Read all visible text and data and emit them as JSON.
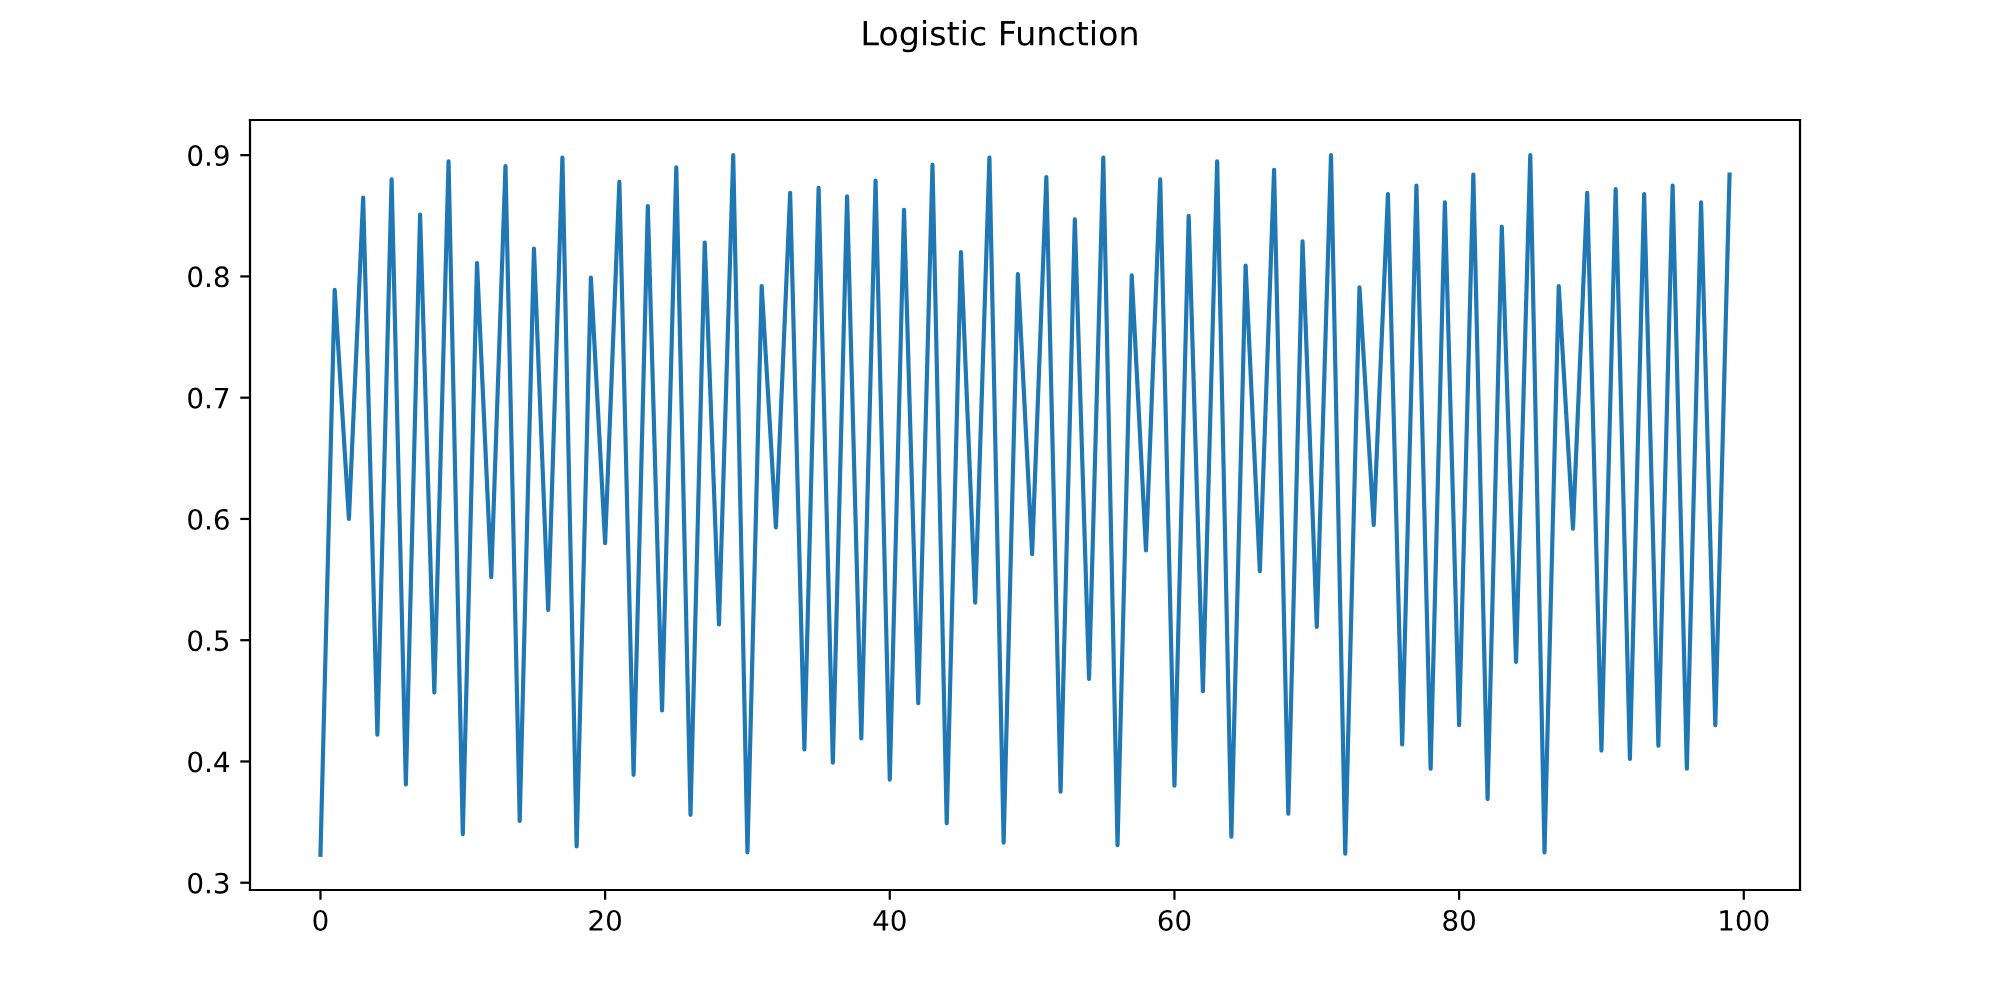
{
  "chart_data": {
    "type": "line",
    "title": "Logistic Function",
    "x": [
      0,
      1,
      2,
      3,
      4,
      5,
      6,
      7,
      8,
      9,
      10,
      11,
      12,
      13,
      14,
      15,
      16,
      17,
      18,
      19,
      20,
      21,
      22,
      23,
      24,
      25,
      26,
      27,
      28,
      29,
      30,
      31,
      32,
      33,
      34,
      35,
      36,
      37,
      38,
      39,
      40,
      41,
      42,
      43,
      44,
      45,
      46,
      47,
      48,
      49,
      50,
      51,
      52,
      53,
      54,
      55,
      56,
      57,
      58,
      59,
      60,
      61,
      62,
      63,
      64,
      65,
      66,
      67,
      68,
      69,
      70,
      71,
      72,
      73,
      74,
      75,
      76,
      77,
      78,
      79,
      80,
      81,
      82,
      83,
      84,
      85,
      86,
      87,
      88,
      89,
      90,
      91,
      92,
      93,
      94,
      95,
      96,
      97,
      98,
      99
    ],
    "series": [
      {
        "color": "#1f77b4",
        "values": [
          0.323,
          0.789,
          0.6,
          0.865,
          0.422,
          0.88,
          0.381,
          0.851,
          0.457,
          0.895,
          0.34,
          0.811,
          0.552,
          0.891,
          0.351,
          0.823,
          0.525,
          0.898,
          0.33,
          0.799,
          0.58,
          0.878,
          0.389,
          0.858,
          0.442,
          0.89,
          0.356,
          0.828,
          0.513,
          0.9,
          0.325,
          0.792,
          0.593,
          0.869,
          0.41,
          0.873,
          0.399,
          0.866,
          0.419,
          0.879,
          0.385,
          0.855,
          0.448,
          0.892,
          0.349,
          0.82,
          0.531,
          0.898,
          0.333,
          0.802,
          0.571,
          0.882,
          0.375,
          0.847,
          0.468,
          0.898,
          0.331,
          0.801,
          0.574,
          0.88,
          0.38,
          0.85,
          0.458,
          0.895,
          0.338,
          0.809,
          0.557,
          0.888,
          0.357,
          0.829,
          0.511,
          0.9,
          0.324,
          0.791,
          0.595,
          0.868,
          0.414,
          0.875,
          0.394,
          0.861,
          0.43,
          0.884,
          0.369,
          0.841,
          0.482,
          0.9,
          0.325,
          0.792,
          0.592,
          0.869,
          0.409,
          0.872,
          0.402,
          0.868,
          0.413,
          0.875,
          0.394,
          0.861,
          0.43,
          0.884
        ]
      }
    ],
    "xlim": [
      -4.95,
      103.95
    ],
    "ylim": [
      0.294,
      0.929
    ],
    "xticks": [
      0,
      20,
      40,
      60,
      80,
      100
    ],
    "yticks": [
      {
        "value": 0.3,
        "label": "0.3"
      },
      {
        "value": 0.4,
        "label": "0.4"
      },
      {
        "value": 0.5,
        "label": "0.5"
      },
      {
        "value": 0.6,
        "label": "0.6"
      },
      {
        "value": 0.7,
        "label": "0.7"
      },
      {
        "value": 0.8,
        "label": "0.8"
      },
      {
        "value": 0.9,
        "label": "0.9"
      }
    ]
  }
}
